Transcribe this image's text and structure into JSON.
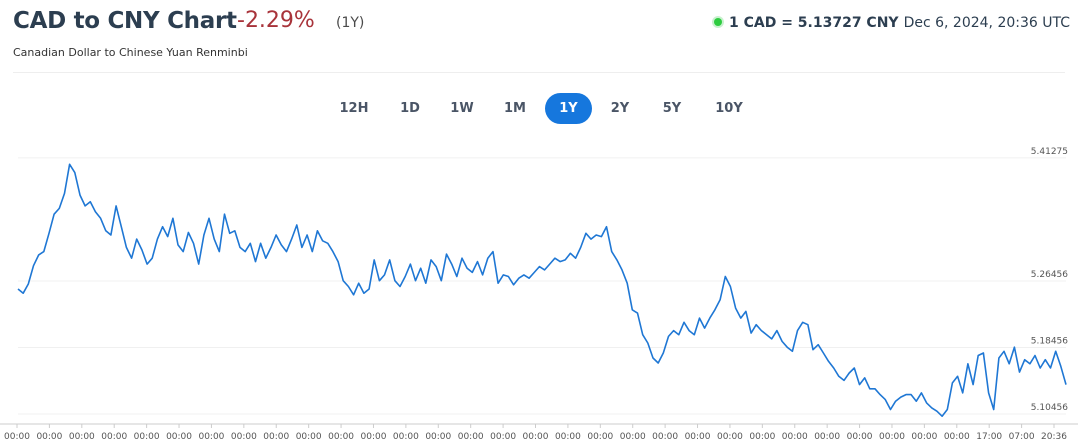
{
  "header": {
    "title": "CAD to CNY Chart",
    "change": "-2.29%",
    "period": "(1Y)",
    "rate": "1 CAD = 5.13727 CNY",
    "timestamp": "Dec 6, 2024, 20:36 UTC",
    "subtitle": "Canadian Dollar to Chinese Yuan Renminbi"
  },
  "tabs": [
    {
      "label": "12H",
      "active": false
    },
    {
      "label": "1D",
      "active": false
    },
    {
      "label": "1W",
      "active": false
    },
    {
      "label": "1M",
      "active": false
    },
    {
      "label": "1Y",
      "active": true
    },
    {
      "label": "2Y",
      "active": false
    },
    {
      "label": "5Y",
      "active": false
    },
    {
      "label": "10Y",
      "active": false
    }
  ],
  "colors": {
    "line": "#1f77d4",
    "change_negative": "#a8333a",
    "tab_active": "#1677dd",
    "live": "#2ecc40"
  },
  "chart_data": {
    "type": "line",
    "series": [
      {
        "values": [
          5.255,
          5.25,
          5.261,
          5.283,
          5.296,
          5.3,
          5.322,
          5.345,
          5.352,
          5.37,
          5.405,
          5.395,
          5.368,
          5.355,
          5.36,
          5.348,
          5.34,
          5.325,
          5.32,
          5.355,
          5.33,
          5.305,
          5.292,
          5.315,
          5.302,
          5.285,
          5.292,
          5.315,
          5.33,
          5.318,
          5.34,
          5.308,
          5.3,
          5.323,
          5.31,
          5.285,
          5.32,
          5.34,
          5.315,
          5.3,
          5.345,
          5.322,
          5.325,
          5.305,
          5.3,
          5.31,
          5.288,
          5.31,
          5.292,
          5.305,
          5.32,
          5.308,
          5.3,
          5.315,
          5.332,
          5.305,
          5.32,
          5.3,
          5.325,
          5.313,
          5.31,
          5.3,
          5.288,
          5.265,
          5.258,
          5.248,
          5.262,
          5.25,
          5.255,
          5.29,
          5.265,
          5.272,
          5.29,
          5.265,
          5.258,
          5.27,
          5.285,
          5.265,
          5.28,
          5.262,
          5.29,
          5.282,
          5.265,
          5.297,
          5.285,
          5.27,
          5.292,
          5.28,
          5.275,
          5.288,
          5.272,
          5.292,
          5.3,
          5.262,
          5.272,
          5.27,
          5.26,
          5.268,
          5.272,
          5.268,
          5.275,
          5.282,
          5.278,
          5.285,
          5.292,
          5.288,
          5.29,
          5.298,
          5.292,
          5.305,
          5.322,
          5.315,
          5.32,
          5.318,
          5.33,
          5.3,
          5.29,
          5.278,
          5.262,
          5.23,
          5.226,
          5.2,
          5.19,
          5.172,
          5.166,
          5.178,
          5.198,
          5.205,
          5.2,
          5.215,
          5.205,
          5.2,
          5.22,
          5.208,
          5.22,
          5.23,
          5.242,
          5.27,
          5.258,
          5.232,
          5.22,
          5.228,
          5.202,
          5.212,
          5.205,
          5.2,
          5.195,
          5.205,
          5.192,
          5.185,
          5.18,
          5.205,
          5.215,
          5.212,
          5.182,
          5.188,
          5.178,
          5.168,
          5.16,
          5.15,
          5.145,
          5.154,
          5.16,
          5.14,
          5.148,
          5.135,
          5.135,
          5.128,
          5.122,
          5.11,
          5.12,
          5.125,
          5.128,
          5.128,
          5.12,
          5.13,
          5.118,
          5.112,
          5.108,
          5.102,
          5.11,
          5.142,
          5.15,
          5.13,
          5.165,
          5.14,
          5.175,
          5.178,
          5.13,
          5.11,
          5.172,
          5.18,
          5.165,
          5.185,
          5.155,
          5.17,
          5.165,
          5.175,
          5.16,
          5.17,
          5.16,
          5.18,
          5.162,
          5.14
        ]
      }
    ],
    "y_ticks": [
      "5.41275",
      "5.26456",
      "5.18456",
      "5.10456"
    ],
    "x_labels": [
      "00:00",
      "00:00",
      "00:00",
      "00:00",
      "00:00",
      "00:00",
      "00:00",
      "00:00",
      "00:00",
      "00:00",
      "00:00",
      "00:00",
      "00:00",
      "00:00",
      "00:00",
      "00:00",
      "00:00",
      "00:00",
      "00:00",
      "00:00",
      "00:00",
      "00:00",
      "00:00",
      "00:00",
      "00:00",
      "00:00",
      "00:00",
      "00:00",
      "00:00",
      "00:00",
      "17:00",
      "07:00",
      "20:36"
    ],
    "ylim": [
      5.095,
      5.415
    ],
    "grid": true
  }
}
